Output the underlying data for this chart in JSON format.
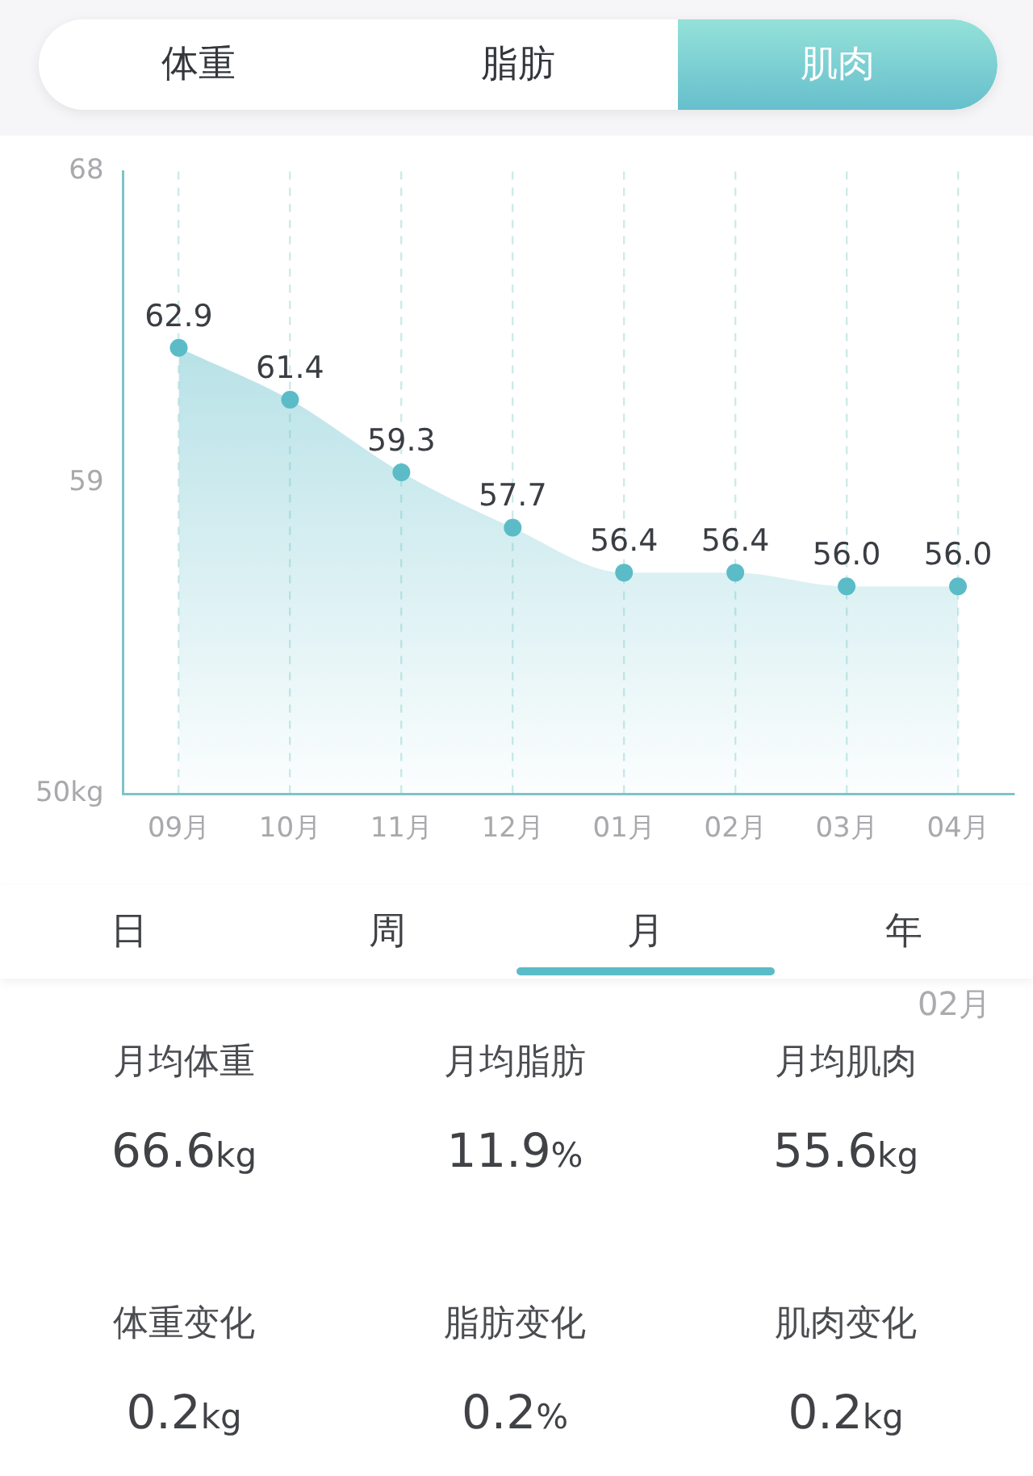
{
  "chart_data": [
    {
      "type": "other",
      "annotations": [
        "体重",
        "脂肪",
        "肌肉"
      ]
    },
    {
      "type": "area",
      "categories": [
        "09月",
        "10月",
        "11月",
        "12月",
        "01月",
        "02月",
        "03月",
        "04月"
      ],
      "values": [
        62.9,
        61.4,
        59.3,
        57.7,
        56.4,
        56.4,
        56.0,
        56.0
      ],
      "value_labels": [
        "62.9",
        "61.4",
        "59.3",
        "57.7",
        "56.4",
        "56.4",
        "56.0",
        "56.0"
      ],
      "color": "#5bbcc8",
      "ylim": [
        50,
        68
      ],
      "yticks": [
        {
          "value": 50,
          "label": "50kg"
        },
        59,
        68
      ],
      "grid": "x",
      "marker": "circle"
    },
    {
      "type": "other",
      "annotations": [
        "日",
        "周",
        "月",
        "年"
      ]
    },
    {
      "type": "other",
      "title": "02月",
      "annotations": [
        "月均体重",
        "66.6kg",
        "月均脂肪",
        "11.9%",
        "月均肌肉",
        "55.6kg",
        "体重变化",
        "0.2kg",
        "脂肪变化",
        "0.2%",
        "肌肉变化",
        "0.2kg"
      ]
    }
  ]
}
